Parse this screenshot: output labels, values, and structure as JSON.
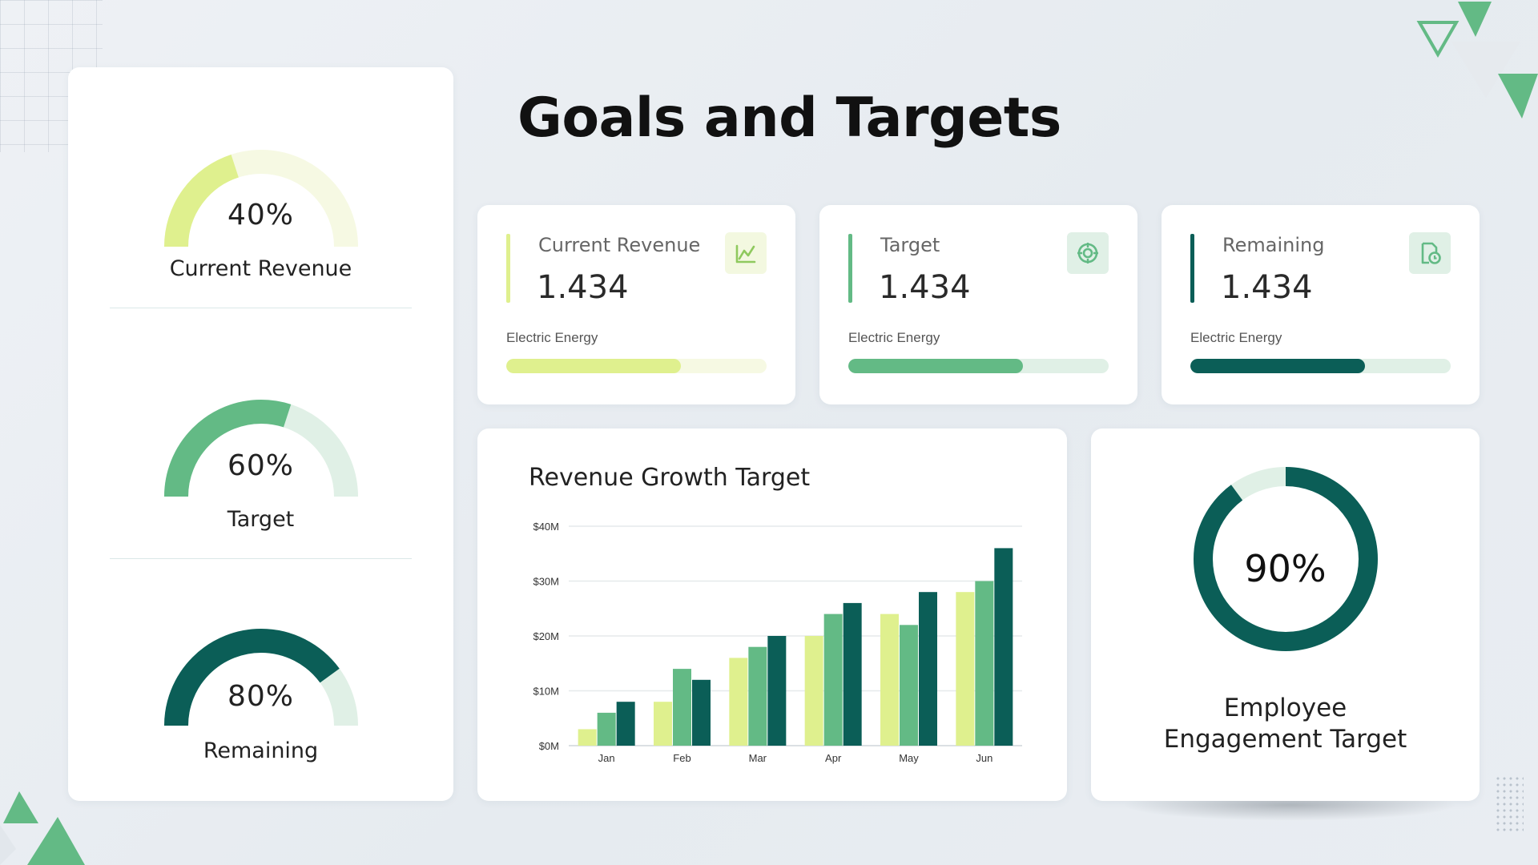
{
  "page": {
    "title": "Goals and Targets",
    "colors": {
      "light_green": "#dff08e",
      "mid_green": "#63ba85",
      "dark_green": "#0b5e57",
      "light_track": "#f6f9e3",
      "mid_track": "#e0f0e6"
    }
  },
  "gauges": [
    {
      "percent": 40,
      "percent_label": "40%",
      "label": "Current Revenue",
      "color": "#dff08e",
      "track": "#f6f9e3"
    },
    {
      "percent": 60,
      "percent_label": "60%",
      "label": "Target",
      "color": "#63ba85",
      "track": "#e0f0e6"
    },
    {
      "percent": 80,
      "percent_label": "80%",
      "label": "Remaining",
      "color": "#0b5e57",
      "track": "#e0f0e6"
    }
  ],
  "stats": [
    {
      "title": "Current Revenue",
      "value": "1.434",
      "subtitle": "Electric Energy",
      "icon": "chart-growth-icon",
      "progress": 0.67,
      "color": "#dff08e",
      "track": "#f6f9e3",
      "icon_bg": "#f3f8e0"
    },
    {
      "title": "Target",
      "value": "1.434",
      "subtitle": "Electric Energy",
      "icon": "target-icon",
      "progress": 0.67,
      "color": "#63ba85",
      "track": "#e0f0e6",
      "icon_bg": "#e0f0e6"
    },
    {
      "title": "Remaining",
      "value": "1.434",
      "subtitle": "Electric Energy",
      "icon": "document-clock-icon",
      "progress": 0.67,
      "color": "#0b5e57",
      "track": "#e0f0e6",
      "icon_bg": "#e0f0e6"
    }
  ],
  "chart_data": {
    "type": "bar",
    "title": "Revenue Growth Target",
    "categories": [
      "Jan",
      "Feb",
      "Mar",
      "Apr",
      "May",
      "Jun"
    ],
    "y_ticks": [
      "$0M",
      "$10M",
      "$20M",
      "$30M",
      "$40M"
    ],
    "ylim": [
      0,
      40
    ],
    "grid": true,
    "series": [
      {
        "color": "#dff08e",
        "values": [
          3,
          8,
          16,
          20,
          24,
          28
        ]
      },
      {
        "color": "#63ba85",
        "values": [
          6,
          14,
          18,
          24,
          22,
          30
        ]
      },
      {
        "color": "#0b5e57",
        "values": [
          8,
          12,
          20,
          26,
          28,
          36
        ]
      }
    ]
  },
  "donut": {
    "percent": 90,
    "percent_label": "90%",
    "label_line1": "Employee",
    "label_line2": "Engagement Target",
    "color": "#0b5e57",
    "track": "#e0f0e6"
  }
}
